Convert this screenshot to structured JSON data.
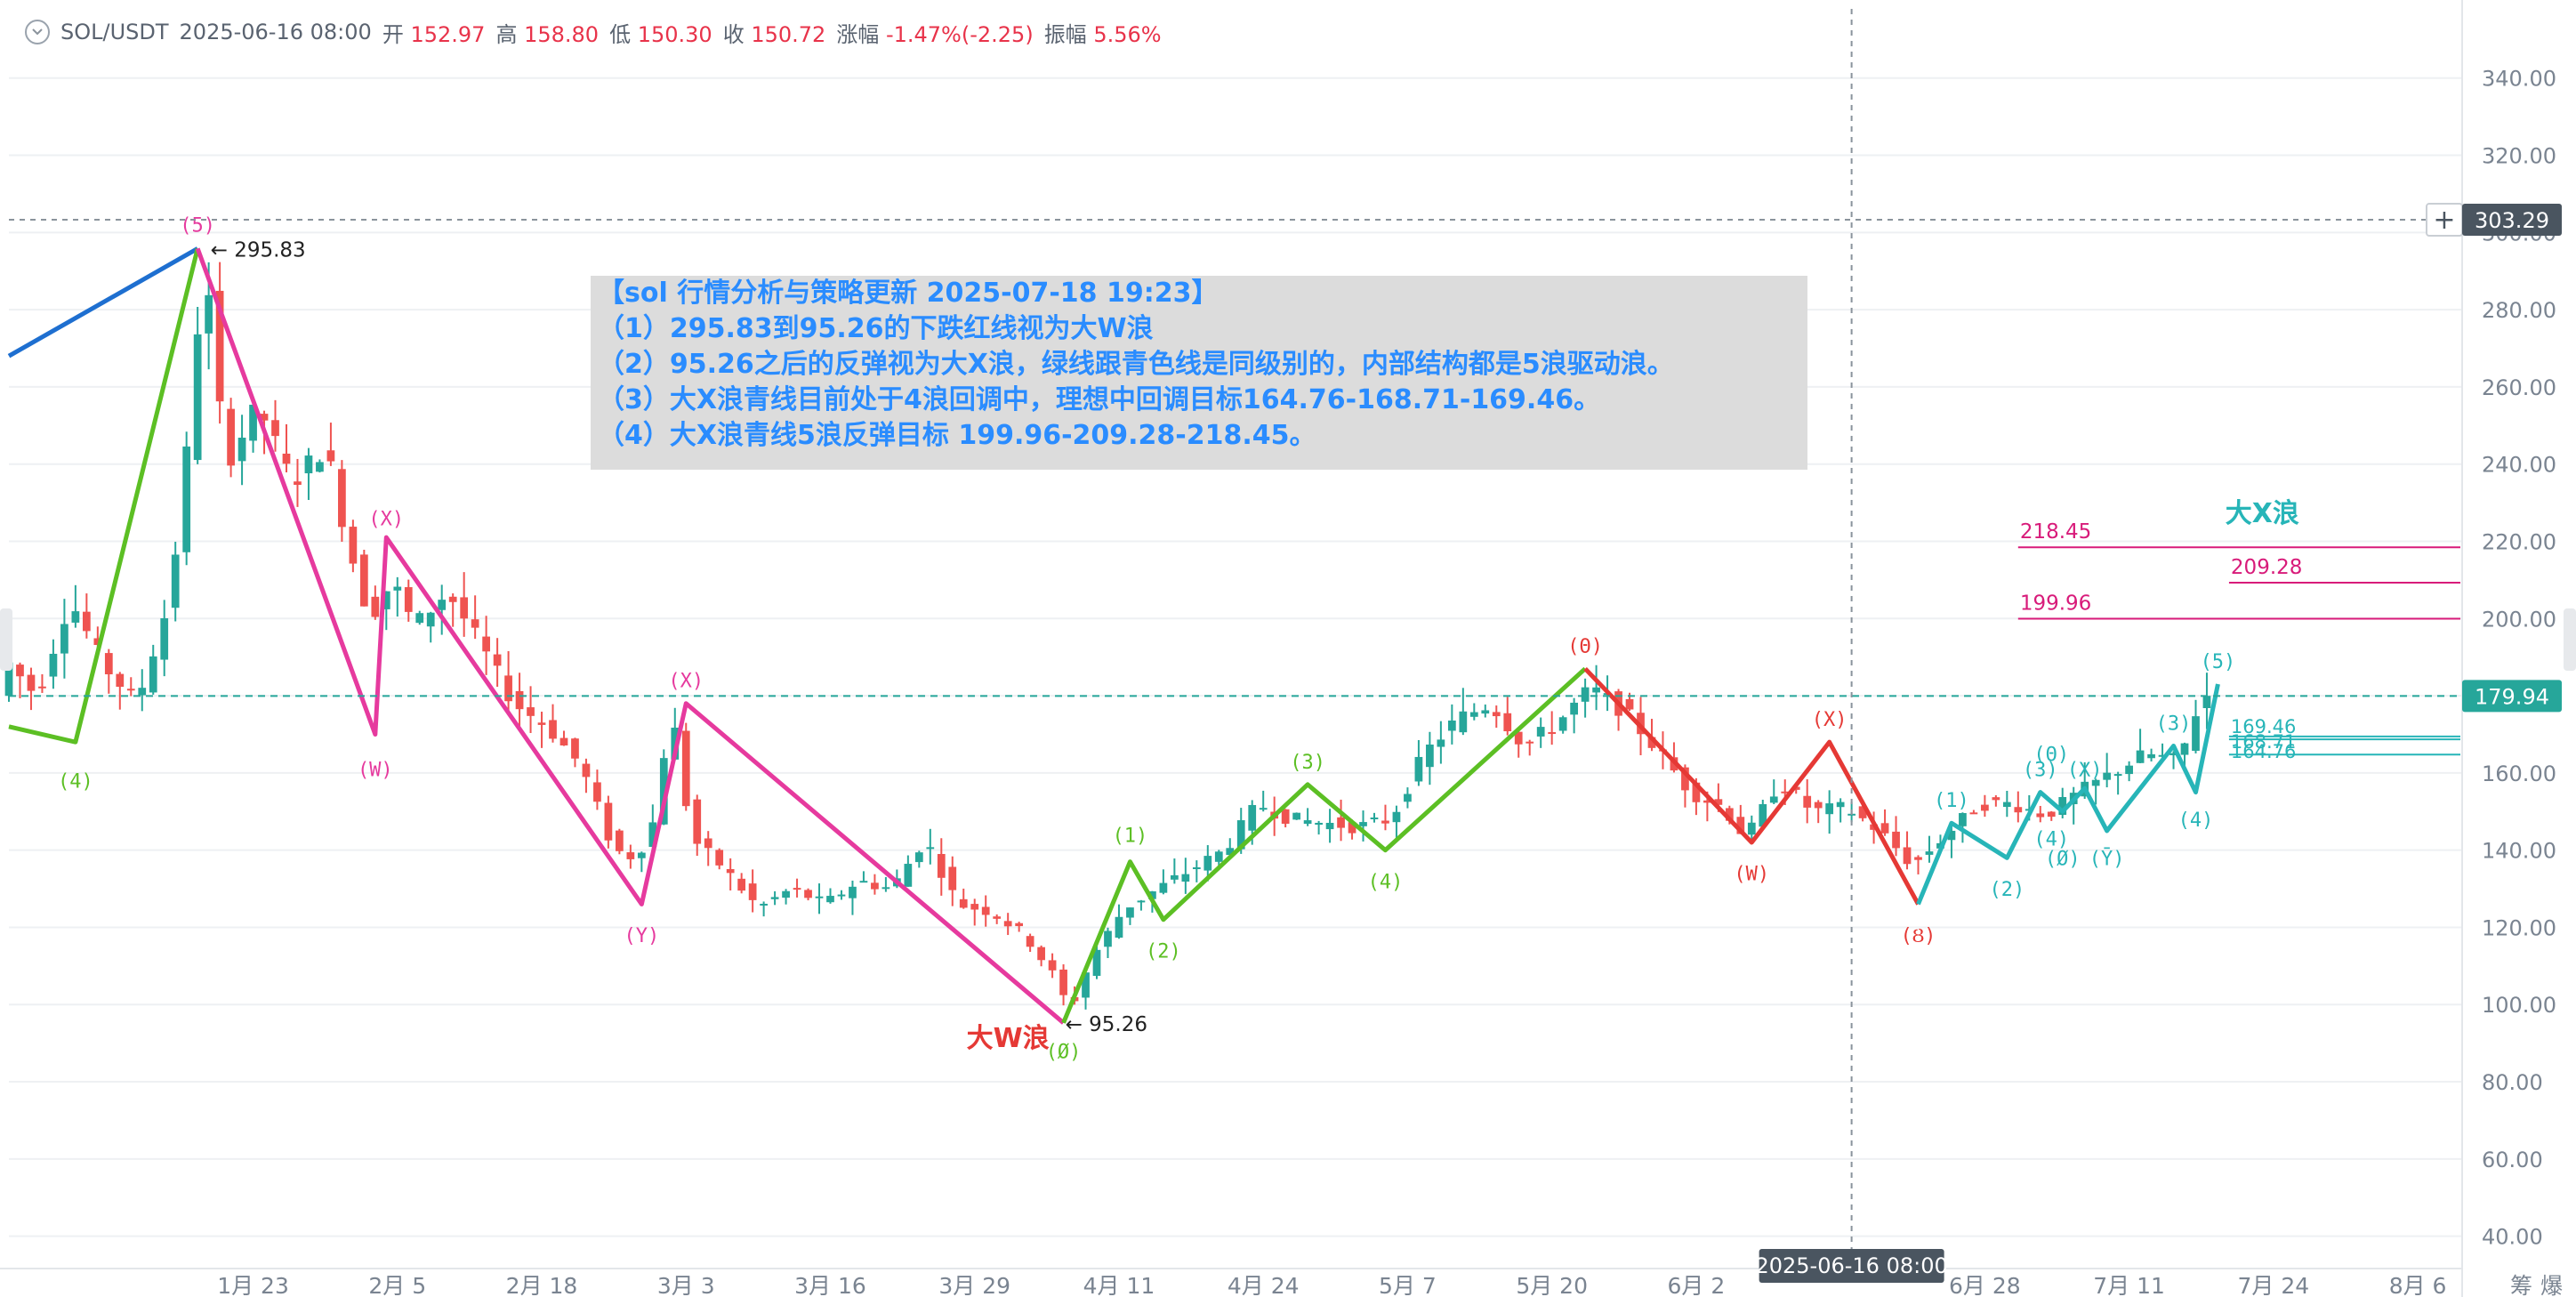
{
  "header": {
    "symbol": "SOL/USDT",
    "datetime": "2025-06-16 08:00",
    "open_label": "开",
    "open": "152.97",
    "high_label": "高",
    "high": "158.80",
    "low_label": "低",
    "low": "150.30",
    "close_label": "收",
    "close": "150.72",
    "change_label": "涨幅",
    "change": "-1.47%(-2.25)",
    "amplitude_label": "振幅",
    "amplitude": "5.56%"
  },
  "annotation": {
    "line1": "【sol 行情分析与策略更新 2025-07-18 19:23】",
    "line2": "（1）295.83到95.26的下跌红线视为大W浪",
    "line3": "（2）95.26之后的反弹视为大X浪，绿线跟青色线是同级别的，内部结构都是5浪驱动浪。",
    "line4": "（3）大X浪青线目前处于4浪回调中，理想中回调目标164.76-168.71-169.46。",
    "line5": "（4）大X浪青线5浪反弹目标 199.96-209.28-218.45。"
  },
  "colors": {
    "up": "#26a69a",
    "down": "#ef5350",
    "magenta": "#e63a9e",
    "green": "#5cbf24",
    "red": "#e53935",
    "cyan": "#27b5b8",
    "blue": "#1e6fd0",
    "target": "#d81b7a",
    "current_price_bg": "#26a69a",
    "crosshair_bg": "#4a5560",
    "grid": "#eef0f3",
    "axis_text": "#7a8491"
  },
  "chart_data": {
    "type": "candlestick",
    "timeframe": "daily",
    "y_ticks": [
      40,
      60,
      80,
      100,
      120,
      140,
      160,
      180,
      200,
      220,
      240,
      260,
      280,
      300,
      320,
      340
    ],
    "y_tick_labels": [
      "40.00",
      "60.00",
      "80.00",
      "100.00",
      "120.00",
      "140.00",
      "160.00",
      "180.00",
      "200.00",
      "220.00",
      "240.00",
      "260.00",
      "280.00",
      "300.00",
      "320.00",
      "340.00"
    ],
    "ylim": [
      33,
      351
    ],
    "x_range": [
      "2025-01-01",
      "2025-08-10"
    ],
    "x_ticks": [
      {
        "date": "2025-01-23",
        "label": "1月 23"
      },
      {
        "date": "2025-02-05",
        "label": "2月 5"
      },
      {
        "date": "2025-02-18",
        "label": "2月 18"
      },
      {
        "date": "2025-03-03",
        "label": "3月 3"
      },
      {
        "date": "2025-03-16",
        "label": "3月 16"
      },
      {
        "date": "2025-03-29",
        "label": "3月 29"
      },
      {
        "date": "2025-04-11",
        "label": "4月 11"
      },
      {
        "date": "2025-04-24",
        "label": "4月 24"
      },
      {
        "date": "2025-05-07",
        "label": "5月 7"
      },
      {
        "date": "2025-05-20",
        "label": "5月 20"
      },
      {
        "date": "2025-06-02",
        "label": "6月 2"
      },
      {
        "date": "2025-06-28",
        "label": "6月 28"
      },
      {
        "date": "2025-07-11",
        "label": "7月 11"
      },
      {
        "date": "2025-07-24",
        "label": "7月 24"
      },
      {
        "date": "2025-08-06",
        "label": "8月 6"
      }
    ],
    "axis_corner_labels": [
      "筹",
      "爆"
    ],
    "current_price": "179.94",
    "crosshair": {
      "date": "2025-06-16",
      "price": 303.29,
      "price_label": "303.29",
      "date_label": "2025-06-16 08:00"
    },
    "price_path": [
      [
        "2025-01-01",
        190
      ],
      [
        "2025-01-04",
        180
      ],
      [
        "2025-01-07",
        205
      ],
      [
        "2025-01-10",
        188
      ],
      [
        "2025-01-13",
        178
      ],
      [
        "2025-01-16",
        205
      ],
      [
        "2025-01-18",
        255
      ],
      [
        "2025-01-19",
        295.83
      ],
      [
        "2025-01-21",
        240
      ],
      [
        "2025-01-24",
        255
      ],
      [
        "2025-01-27",
        235
      ],
      [
        "2025-01-30",
        245
      ],
      [
        "2025-02-01",
        220
      ],
      [
        "2025-02-03",
        200
      ],
      [
        "2025-02-05",
        210
      ],
      [
        "2025-02-07",
        198
      ],
      [
        "2025-02-10",
        207
      ],
      [
        "2025-02-13",
        193
      ],
      [
        "2025-02-16",
        178
      ],
      [
        "2025-02-19",
        172
      ],
      [
        "2025-02-22",
        162
      ],
      [
        "2025-02-25",
        140
      ],
      [
        "2025-02-27",
        138
      ],
      [
        "2025-03-01",
        150
      ],
      [
        "2025-03-02",
        180
      ],
      [
        "2025-03-04",
        143
      ],
      [
        "2025-03-07",
        135
      ],
      [
        "2025-03-10",
        125
      ],
      [
        "2025-03-13",
        130
      ],
      [
        "2025-03-16",
        126
      ],
      [
        "2025-03-19",
        132
      ],
      [
        "2025-03-22",
        130
      ],
      [
        "2025-03-25",
        143
      ],
      [
        "2025-03-28",
        126
      ],
      [
        "2025-03-31",
        124
      ],
      [
        "2025-04-03",
        118
      ],
      [
        "2025-04-06",
        106
      ],
      [
        "2025-04-07",
        98
      ],
      [
        "2025-04-09",
        112
      ],
      [
        "2025-04-12",
        125
      ],
      [
        "2025-04-15",
        130
      ],
      [
        "2025-04-18",
        135
      ],
      [
        "2025-04-21",
        140
      ],
      [
        "2025-04-24",
        152
      ],
      [
        "2025-04-27",
        148
      ],
      [
        "2025-04-30",
        147
      ],
      [
        "2025-05-03",
        146
      ],
      [
        "2025-05-06",
        148
      ],
      [
        "2025-05-09",
        165
      ],
      [
        "2025-05-12",
        174
      ],
      [
        "2025-05-15",
        178
      ],
      [
        "2025-05-18",
        167
      ],
      [
        "2025-05-21",
        173
      ],
      [
        "2025-05-24",
        182
      ],
      [
        "2025-05-27",
        176
      ],
      [
        "2025-05-30",
        166
      ],
      [
        "2025-06-02",
        155
      ],
      [
        "2025-06-05",
        151
      ],
      [
        "2025-06-07",
        143
      ],
      [
        "2025-06-10",
        158
      ],
      [
        "2025-06-13",
        150
      ],
      [
        "2025-06-16",
        151
      ],
      [
        "2025-06-19",
        145
      ],
      [
        "2025-06-22",
        136
      ],
      [
        "2025-06-25",
        144
      ],
      [
        "2025-06-28",
        152
      ],
      [
        "2025-07-01",
        152
      ],
      [
        "2025-07-04",
        149
      ],
      [
        "2025-07-07",
        155
      ],
      [
        "2025-07-10",
        160
      ],
      [
        "2025-07-13",
        165
      ],
      [
        "2025-07-16",
        163
      ],
      [
        "2025-07-18",
        180
      ]
    ],
    "wave_lines": [
      {
        "color": "blue",
        "points": [
          [
            "2025-01-01",
            268
          ],
          [
            "2025-01-18",
            295.83
          ]
        ]
      },
      {
        "color": "green",
        "points": [
          [
            "2025-01-01",
            172
          ],
          [
            "2025-01-07",
            168
          ],
          [
            "2025-01-18",
            295.83
          ]
        ]
      },
      {
        "color": "magenta",
        "points": [
          [
            "2025-01-18",
            295.83
          ],
          [
            "2025-02-03",
            170
          ],
          [
            "2025-02-04",
            221
          ],
          [
            "2025-02-27",
            126
          ],
          [
            "2025-03-03",
            178
          ],
          [
            "2025-04-06",
            95.26
          ]
        ]
      },
      {
        "color": "green",
        "points": [
          [
            "2025-04-06",
            95.26
          ],
          [
            "2025-04-12",
            137
          ],
          [
            "2025-04-15",
            122
          ],
          [
            "2025-04-28",
            157
          ],
          [
            "2025-05-05",
            140
          ],
          [
            "2025-05-23",
            187
          ]
        ]
      },
      {
        "color": "red",
        "points": [
          [
            "2025-05-23",
            187
          ],
          [
            "2025-06-07",
            142
          ],
          [
            "2025-06-14",
            168
          ],
          [
            "2025-06-22",
            126
          ]
        ]
      },
      {
        "color": "cyan",
        "points": [
          [
            "2025-06-22",
            126
          ],
          [
            "2025-06-25",
            147
          ],
          [
            "2025-06-30",
            138
          ],
          [
            "2025-07-03",
            155
          ],
          [
            "2025-07-05",
            150
          ],
          [
            "2025-07-07",
            156
          ],
          [
            "2025-07-09",
            145
          ],
          [
            "2025-07-15",
            167
          ],
          [
            "2025-07-17",
            155
          ],
          [
            "2025-07-19",
            183
          ]
        ]
      }
    ],
    "wave_labels": [
      {
        "text": "(5)",
        "date": "2025-01-18",
        "price": 302,
        "color": "magenta"
      },
      {
        "text": "(4)",
        "date": "2025-01-07",
        "price": 158,
        "color": "green"
      },
      {
        "text": "(W)",
        "date": "2025-02-03",
        "price": 161,
        "color": "magenta"
      },
      {
        "text": "(X)",
        "date": "2025-02-04",
        "price": 226,
        "color": "magenta"
      },
      {
        "text": "(Y)",
        "date": "2025-02-27",
        "price": 118,
        "color": "magenta"
      },
      {
        "text": "(X)",
        "date": "2025-03-03",
        "price": 184,
        "color": "magenta"
      },
      {
        "text": "(Ø)",
        "date": "2025-04-06",
        "price": 88,
        "color": "green"
      },
      {
        "text": "(1)",
        "date": "2025-04-12",
        "price": 144,
        "color": "green"
      },
      {
        "text": "(2)",
        "date": "2025-04-15",
        "price": 114,
        "color": "green"
      },
      {
        "text": "(3)",
        "date": "2025-04-28",
        "price": 163,
        "color": "green"
      },
      {
        "text": "(4)",
        "date": "2025-05-05",
        "price": 132,
        "color": "green"
      },
      {
        "text": "(Θ)",
        "date": "2025-05-23",
        "price": 193,
        "color": "red"
      },
      {
        "text": "(W)",
        "date": "2025-06-07",
        "price": 134,
        "color": "red"
      },
      {
        "text": "(X)",
        "date": "2025-06-14",
        "price": 174,
        "color": "red"
      },
      {
        "text": "(Ȣ)",
        "date": "2025-06-22",
        "price": 118,
        "color": "red"
      },
      {
        "text": "(1)",
        "date": "2025-06-25",
        "price": 153,
        "color": "cyan"
      },
      {
        "text": "(2)",
        "date": "2025-06-30",
        "price": 130,
        "color": "cyan"
      },
      {
        "text": "(3)",
        "date": "2025-07-03",
        "price": 161,
        "color": "cyan"
      },
      {
        "text": "(4)",
        "date": "2025-07-04",
        "price": 143,
        "color": "cyan"
      },
      {
        "text": "(Θ)",
        "date": "2025-07-04",
        "price": 165,
        "color": "cyan"
      },
      {
        "text": "(Ø)",
        "date": "2025-07-05",
        "price": 138,
        "color": "cyan"
      },
      {
        "text": "(Χ)",
        "date": "2025-07-07",
        "price": 161,
        "color": "cyan"
      },
      {
        "text": "(Ȳ)",
        "date": "2025-07-09",
        "price": 138,
        "color": "cyan"
      },
      {
        "text": "(3)",
        "date": "2025-07-15",
        "price": 173,
        "color": "cyan"
      },
      {
        "text": "(4)",
        "date": "2025-07-17",
        "price": 148,
        "color": "cyan"
      },
      {
        "text": "(5)",
        "date": "2025-07-19",
        "price": 189,
        "color": "cyan"
      }
    ],
    "price_marks": [
      {
        "text": "← 295.83",
        "date": "2025-01-19",
        "price": 295.83
      },
      {
        "text": "← 95.26",
        "date": "2025-04-06",
        "price": 95.26
      }
    ],
    "wave_names": [
      {
        "text": "大W浪",
        "date": "2025-04-01",
        "price": 89,
        "color": "red"
      },
      {
        "text": "大X浪",
        "date": "2025-07-23",
        "price": 225,
        "color": "cyan"
      }
    ],
    "targets": [
      {
        "label": "218.45",
        "value": 218.45,
        "color": "magenta"
      },
      {
        "label": "209.28",
        "value": 209.28,
        "color": "magenta"
      },
      {
        "label": "199.96",
        "value": 199.96,
        "color": "magenta"
      }
    ],
    "retrace_levels": [
      {
        "label": "169.46",
        "value": 169.46
      },
      {
        "label": "168.71",
        "value": 168.71
      },
      {
        "label": "164.76",
        "value": 164.76
      }
    ]
  }
}
